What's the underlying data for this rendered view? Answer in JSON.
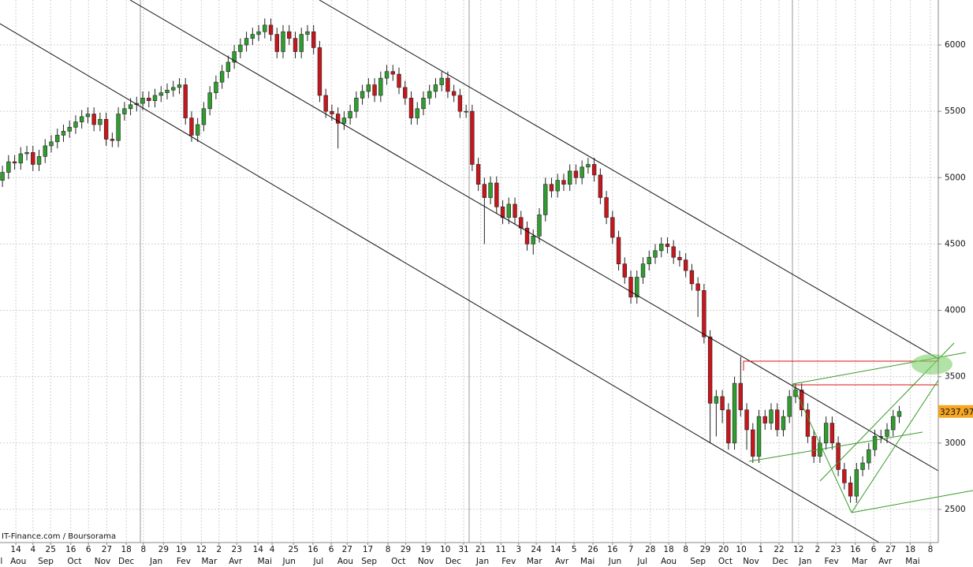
{
  "chart_data": {
    "type": "candlestick",
    "credit": "IT-Finance.com / Boursorama",
    "up_color": "#2f9e2f",
    "down_color": "#c8161d",
    "ylim": [
      2250,
      6339
    ],
    "yticks": [
      2500,
      3000,
      3500,
      4000,
      4500,
      5000,
      5500,
      6000
    ],
    "grid": true,
    "xlim": [
      -0.4,
      153.4
    ],
    "xticks": [
      {
        "value": 2.2,
        "label": "14"
      },
      {
        "value": 5.0,
        "label": "4"
      },
      {
        "value": 7.9,
        "label": "25"
      },
      {
        "value": 11.2,
        "label": "16"
      },
      {
        "value": 14.1,
        "label": "6"
      },
      {
        "value": 17.1,
        "label": "27"
      },
      {
        "value": 20.3,
        "label": "18"
      },
      {
        "value": 23.1,
        "label": "8"
      },
      {
        "value": 26.4,
        "label": "29"
      },
      {
        "value": 29.3,
        "label": "19"
      },
      {
        "value": 32.6,
        "label": "12"
      },
      {
        "value": 35.5,
        "label": "2"
      },
      {
        "value": 38.4,
        "label": "23"
      },
      {
        "value": 41.9,
        "label": "14"
      },
      {
        "value": 44.2,
        "label": "4"
      },
      {
        "value": 47.7,
        "label": "25"
      },
      {
        "value": 50.9,
        "label": "16"
      },
      {
        "value": 53.9,
        "label": "6"
      },
      {
        "value": 56.5,
        "label": "27"
      },
      {
        "value": 59.9,
        "label": "17"
      },
      {
        "value": 63.2,
        "label": "8"
      },
      {
        "value": 66.1,
        "label": "29"
      },
      {
        "value": 69.4,
        "label": "19"
      },
      {
        "value": 72.6,
        "label": "10"
      },
      {
        "value": 75.6,
        "label": "31"
      },
      {
        "value": 78.4,
        "label": "21"
      },
      {
        "value": 81.7,
        "label": "11"
      },
      {
        "value": 84.6,
        "label": "3"
      },
      {
        "value": 87.5,
        "label": "24"
      },
      {
        "value": 90.7,
        "label": "14"
      },
      {
        "value": 93.7,
        "label": "5"
      },
      {
        "value": 96.8,
        "label": "26"
      },
      {
        "value": 100.0,
        "label": "16"
      },
      {
        "value": 103.0,
        "label": "7"
      },
      {
        "value": 106.2,
        "label": "28"
      },
      {
        "value": 109.2,
        "label": "18"
      },
      {
        "value": 112.0,
        "label": "8"
      },
      {
        "value": 115.2,
        "label": "29"
      },
      {
        "value": 118.2,
        "label": "20"
      },
      {
        "value": 121.1,
        "label": "10"
      },
      {
        "value": 124.3,
        "label": "1"
      },
      {
        "value": 127.3,
        "label": "22"
      },
      {
        "value": 130.5,
        "label": "12"
      },
      {
        "value": 133.6,
        "label": "2"
      },
      {
        "value": 136.6,
        "label": "23"
      },
      {
        "value": 139.8,
        "label": "16"
      },
      {
        "value": 142.8,
        "label": "6"
      },
      {
        "value": 145.6,
        "label": "27"
      },
      {
        "value": 148.8,
        "label": "18"
      },
      {
        "value": 152.1,
        "label": "8"
      }
    ],
    "month_labels": [
      {
        "value": -0.8,
        "label": "Jul"
      },
      {
        "value": 2.6,
        "label": "Aou"
      },
      {
        "value": 7.1,
        "label": "Sep"
      },
      {
        "value": 11.8,
        "label": "Oct"
      },
      {
        "value": 16.4,
        "label": "Nov"
      },
      {
        "value": 20.3,
        "label": "Dec"
      },
      {
        "value": 25.2,
        "label": "Jan"
      },
      {
        "value": 29.7,
        "label": "Fev"
      },
      {
        "value": 33.9,
        "label": "Mar"
      },
      {
        "value": 38.2,
        "label": "Avr"
      },
      {
        "value": 43.0,
        "label": "Mai"
      },
      {
        "value": 47.0,
        "label": "Jun"
      },
      {
        "value": 51.8,
        "label": "Jul"
      },
      {
        "value": 56.2,
        "label": "Aou"
      },
      {
        "value": 60.1,
        "label": "Sep"
      },
      {
        "value": 64.9,
        "label": "Oct"
      },
      {
        "value": 69.4,
        "label": "Nov"
      },
      {
        "value": 73.9,
        "label": "Dec"
      },
      {
        "value": 78.7,
        "label": "Jan"
      },
      {
        "value": 83.0,
        "label": "Fev"
      },
      {
        "value": 87.2,
        "label": "Mar"
      },
      {
        "value": 91.7,
        "label": "Avr"
      },
      {
        "value": 95.9,
        "label": "Mai"
      },
      {
        "value": 100.4,
        "label": "Jun"
      },
      {
        "value": 104.9,
        "label": "Jul"
      },
      {
        "value": 109.2,
        "label": "Aou"
      },
      {
        "value": 114.0,
        "label": "Sep"
      },
      {
        "value": 118.5,
        "label": "Oct"
      },
      {
        "value": 122.7,
        "label": "Nov"
      },
      {
        "value": 127.5,
        "label": "Dec"
      },
      {
        "value": 131.6,
        "label": "Jan"
      },
      {
        "value": 135.9,
        "label": "Fev"
      },
      {
        "value": 140.5,
        "label": "Mar"
      },
      {
        "value": 144.7,
        "label": "Avr"
      },
      {
        "value": 149.2,
        "label": "Mai"
      }
    ],
    "last_price": {
      "value": 3237.97,
      "label": "3237,97"
    },
    "open": [
      4980,
      5040,
      5120,
      5110,
      5180,
      5190,
      5100,
      5160,
      5240,
      5270,
      5320,
      5350,
      5380,
      5420,
      5460,
      5480,
      5400,
      5440,
      5290,
      5280,
      5480,
      5520,
      5550,
      5560,
      5600,
      5580,
      5620,
      5640,
      5660,
      5680,
      5700,
      5450,
      5320,
      5400,
      5520,
      5640,
      5720,
      5800,
      5870,
      5950,
      6000,
      6050,
      6080,
      6100,
      6150,
      6080,
      5950,
      6100,
      6050,
      5950,
      6080,
      6100,
      5980,
      5620,
      5500,
      5480,
      5410,
      5450,
      5500,
      5600,
      5650,
      5700,
      5620,
      5750,
      5800,
      5780,
      5680,
      5600,
      5450,
      5520,
      5600,
      5650,
      5700,
      5750,
      5650,
      5620,
      5500,
      5500,
      5100,
      4950,
      4850,
      4960,
      4780,
      4700,
      4800,
      4700,
      4620,
      4500,
      4560,
      4720,
      4950,
      4900,
      4980,
      4950,
      5050,
      5000,
      5080,
      5100,
      5020,
      4850,
      4700,
      4550,
      4350,
      4250,
      4100,
      4250,
      4350,
      4400,
      4450,
      4500,
      4480,
      4400,
      4380,
      4300,
      4200,
      4150,
      3800,
      3300,
      3350,
      3250,
      3000,
      3450,
      3250,
      3100,
      2900,
      3200,
      3150,
      3250,
      3100,
      3200,
      3350,
      3400,
      3250,
      3050,
      2900,
      3000,
      3150,
      3000,
      2800,
      2700,
      2600,
      2800,
      2850,
      2950,
      3050,
      3050,
      3100,
      3200
    ],
    "high": [
      5090,
      5170,
      5170,
      5230,
      5240,
      5240,
      5210,
      5290,
      5320,
      5370,
      5400,
      5430,
      5470,
      5510,
      5530,
      5530,
      5490,
      5490,
      5340,
      5530,
      5570,
      5600,
      5610,
      5650,
      5650,
      5670,
      5690,
      5710,
      5730,
      5750,
      5750,
      5500,
      5450,
      5570,
      5690,
      5770,
      5850,
      5920,
      6000,
      6050,
      6100,
      6130,
      6150,
      6200,
      6200,
      6130,
      6150,
      6150,
      6100,
      6130,
      6150,
      6150,
      6030,
      5670,
      5550,
      5530,
      5500,
      5550,
      5650,
      5700,
      5750,
      5750,
      5800,
      5850,
      5850,
      5830,
      5730,
      5650,
      5570,
      5650,
      5700,
      5750,
      5800,
      5800,
      5700,
      5670,
      5550,
      5550,
      5150,
      5000,
      5010,
      5010,
      4830,
      4850,
      4850,
      4750,
      4670,
      4610,
      4770,
      5000,
      5000,
      5030,
      5030,
      5100,
      5100,
      5130,
      5150,
      5150,
      5070,
      4900,
      4750,
      4600,
      4400,
      4300,
      4300,
      4400,
      4450,
      4500,
      4550,
      4550,
      4530,
      4450,
      4430,
      4350,
      4250,
      4200,
      3850,
      3400,
      3400,
      3300,
      3500,
      3650,
      3300,
      3150,
      3250,
      3250,
      3300,
      3300,
      3250,
      3400,
      3450,
      3450,
      3300,
      3100,
      3050,
      3200,
      3200,
      3050,
      2850,
      2750,
      2850,
      2900,
      3000,
      3100,
      3100,
      3150,
      3250,
      3280
    ],
    "low": [
      4930,
      4990,
      5060,
      5060,
      5130,
      5050,
      5050,
      5110,
      5190,
      5220,
      5270,
      5300,
      5330,
      5370,
      5410,
      5350,
      5350,
      5240,
      5230,
      5230,
      5430,
      5470,
      5500,
      5510,
      5530,
      5530,
      5570,
      5590,
      5610,
      5630,
      5400,
      5270,
      5270,
      5350,
      5470,
      5590,
      5670,
      5750,
      5820,
      5900,
      5950,
      6000,
      6030,
      6050,
      6030,
      5900,
      5900,
      6000,
      5900,
      5900,
      6030,
      5930,
      5570,
      5450,
      5430,
      5220,
      5360,
      5400,
      5450,
      5550,
      5600,
      5570,
      5570,
      5700,
      5730,
      5630,
      5550,
      5400,
      5400,
      5470,
      5550,
      5600,
      5650,
      5600,
      5570,
      5450,
      5450,
      5050,
      4900,
      4500,
      4800,
      4730,
      4650,
      4650,
      4650,
      4570,
      4450,
      4420,
      4510,
      4670,
      4850,
      4850,
      4900,
      4900,
      4950,
      4950,
      5030,
      4970,
      4800,
      4650,
      4500,
      4300,
      4200,
      4050,
      4050,
      4200,
      4300,
      4350,
      4400,
      4430,
      4350,
      4330,
      4250,
      4150,
      3950,
      3750,
      3000,
      3050,
      3150,
      2950,
      2950,
      3200,
      2950,
      2850,
      2850,
      3100,
      3100,
      3050,
      3050,
      3150,
      3300,
      3200,
      3000,
      2850,
      2850,
      2950,
      2950,
      2750,
      2650,
      2550,
      2550,
      2750,
      2800,
      2900,
      3000,
      3000,
      3050,
      3150
    ],
    "close": [
      5040,
      5120,
      5110,
      5180,
      5190,
      5100,
      5160,
      5240,
      5270,
      5320,
      5350,
      5380,
      5420,
      5460,
      5480,
      5400,
      5440,
      5290,
      5280,
      5480,
      5520,
      5550,
      5560,
      5600,
      5580,
      5620,
      5640,
      5660,
      5680,
      5700,
      5450,
      5320,
      5400,
      5520,
      5640,
      5720,
      5800,
      5870,
      5950,
      6000,
      6050,
      6080,
      6100,
      6150,
      6080,
      5950,
      6100,
      6050,
      5950,
      6080,
      6100,
      5980,
      5620,
      5500,
      5480,
      5410,
      5450,
      5500,
      5600,
      5650,
      5700,
      5620,
      5750,
      5800,
      5780,
      5680,
      5600,
      5450,
      5520,
      5600,
      5650,
      5700,
      5750,
      5650,
      5620,
      5500,
      5500,
      5100,
      4950,
      4850,
      4960,
      4780,
      4700,
      4800,
      4700,
      4620,
      4500,
      4560,
      4720,
      4950,
      4900,
      4980,
      4950,
      5050,
      5000,
      5080,
      5100,
      5020,
      4850,
      4700,
      4550,
      4350,
      4250,
      4100,
      4250,
      4350,
      4400,
      4450,
      4500,
      4480,
      4400,
      4380,
      4300,
      4200,
      4150,
      3800,
      3300,
      3350,
      3250,
      3000,
      3450,
      3250,
      3100,
      2900,
      3200,
      3150,
      3250,
      3100,
      3200,
      3350,
      3400,
      3250,
      3050,
      2900,
      3000,
      3150,
      3000,
      2800,
      2700,
      2600,
      2800,
      2850,
      2950,
      3050,
      3050,
      3100,
      3200,
      3237.97
    ]
  }
}
